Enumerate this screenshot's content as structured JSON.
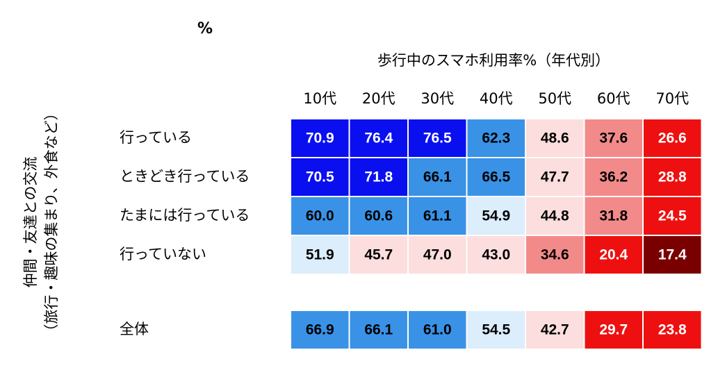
{
  "side_label": [
    "仲間・友達との交流",
    "（旅行・趣味の集まり、外食など）"
  ],
  "unit": "%",
  "title": "歩行中のスマホ利用率%（年代別）",
  "table": {
    "columns": [
      "10代",
      "20代",
      "30代",
      "40代",
      "50代",
      "60代",
      "70代"
    ],
    "rows": [
      {
        "label": "行っている",
        "values": [
          "70.9",
          "76.4",
          "76.5",
          "62.3",
          "48.6",
          "37.6",
          "26.6"
        ],
        "colors": [
          "#0a0ff0",
          "#0a0ff0",
          "#0a0ff0",
          "#3a92e6",
          "#fcdede",
          "#f28a8a",
          "#ee1010"
        ]
      },
      {
        "label": "ときどき行っている",
        "values": [
          "70.5",
          "71.8",
          "66.1",
          "66.5",
          "47.7",
          "36.2",
          "28.8"
        ],
        "colors": [
          "#0a0ff0",
          "#0a0ff0",
          "#3a92e6",
          "#3a92e6",
          "#fcdede",
          "#f28a8a",
          "#ee1010"
        ]
      },
      {
        "label": "たまには行っている",
        "values": [
          "60.0",
          "60.6",
          "61.1",
          "54.9",
          "44.8",
          "31.8",
          "24.5"
        ],
        "colors": [
          "#3a92e6",
          "#3a92e6",
          "#3a92e6",
          "#dcedfb",
          "#fcdede",
          "#f28a8a",
          "#ee1010"
        ]
      },
      {
        "label": "行っていない",
        "values": [
          "51.9",
          "45.7",
          "47.0",
          "43.0",
          "34.6",
          "20.4",
          "17.4"
        ],
        "colors": [
          "#dcedfb",
          "#fcdede",
          "#fcdede",
          "#fcdede",
          "#f28a8a",
          "#ee1010",
          "#7a0000"
        ]
      },
      {
        "label": "全体",
        "values": [
          "66.9",
          "66.1",
          "61.0",
          "54.5",
          "42.7",
          "29.7",
          "23.8"
        ],
        "colors": [
          "#3a92e6",
          "#3a92e6",
          "#3a92e6",
          "#dcedfb",
          "#fcdede",
          "#ee1010",
          "#ee1010"
        ]
      }
    ]
  }
}
